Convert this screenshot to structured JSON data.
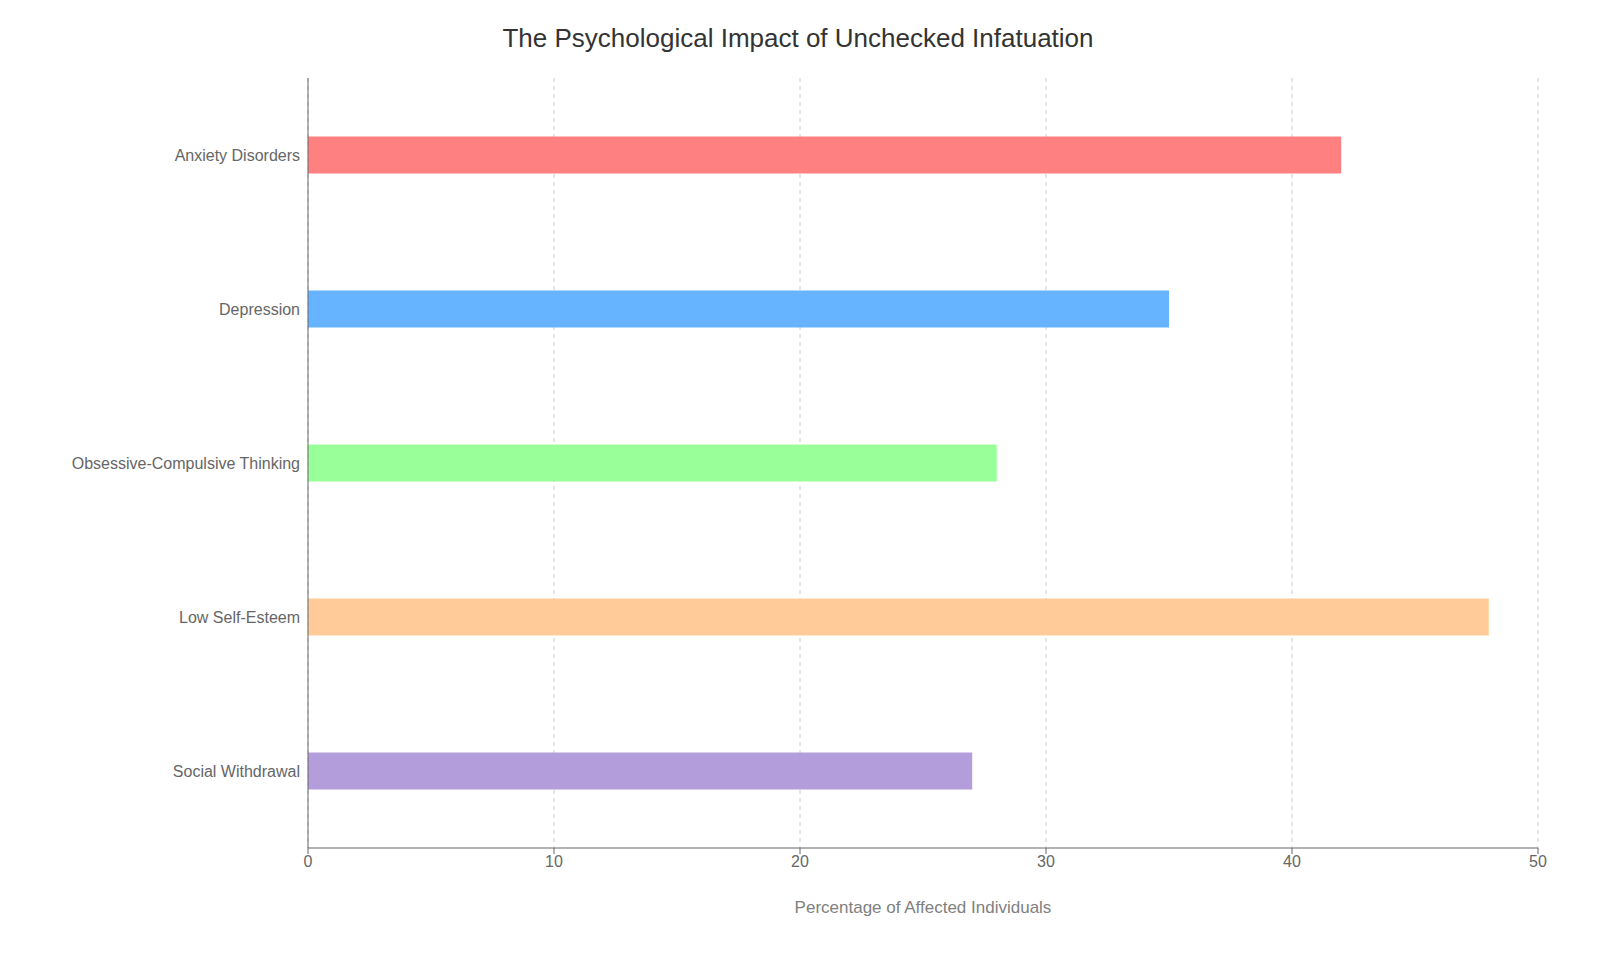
{
  "chart_data": {
    "type": "bar",
    "orientation": "horizontal",
    "title": "The Psychological Impact of Unchecked Infatuation",
    "categories": [
      "Social Withdrawal",
      "Low Self-Esteem",
      "Obsessive-Compulsive Thinking",
      "Depression",
      "Anxiety Disorders"
    ],
    "values": [
      27,
      48,
      28,
      35,
      42
    ],
    "colors": [
      "#b39ddb",
      "#ffcc99",
      "#99ff99",
      "#66b3ff",
      "#ff8080"
    ],
    "xlabel": "Percentage of Affected Individuals",
    "xlim": [
      0,
      50
    ],
    "xticks": [
      0,
      10,
      20,
      30,
      40,
      50
    ],
    "grid": true
  }
}
